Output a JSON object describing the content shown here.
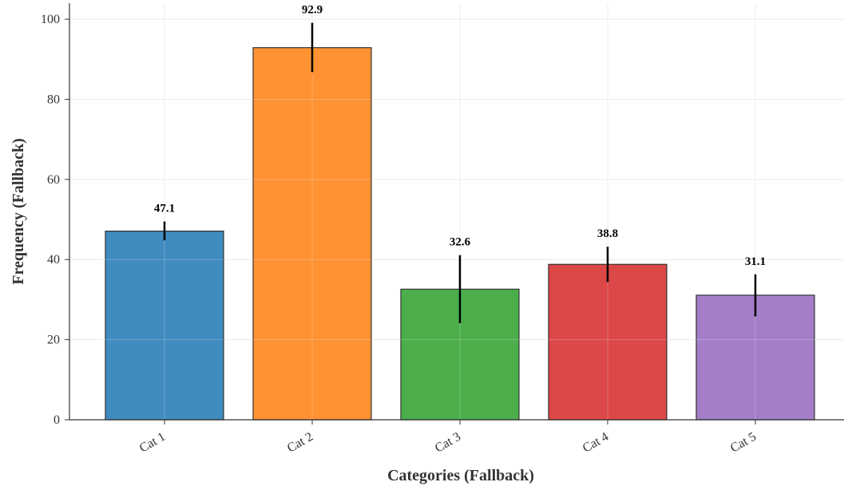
{
  "chart_data": {
    "type": "bar",
    "title": "",
    "xlabel": "Categories (Fallback)",
    "ylabel": "Frequency (Fallback)",
    "categories": [
      "Cat 1",
      "Cat 2",
      "Cat 3",
      "Cat 4",
      "Cat 5"
    ],
    "values": [
      47.1,
      92.9,
      32.6,
      38.8,
      31.1
    ],
    "value_labels": [
      "47.1",
      "92.9",
      "32.6",
      "38.8",
      "31.1"
    ],
    "error_low": [
      44.8,
      86.8,
      24.1,
      34.4,
      25.8
    ],
    "error_high": [
      49.5,
      99.1,
      41.1,
      43.2,
      36.3
    ],
    "colors": [
      "#1f77b4",
      "#ff7f0e",
      "#2ca02c",
      "#d62728",
      "#9467bd"
    ],
    "ylim": [
      0,
      104
    ],
    "yticks": [
      0,
      20,
      40,
      60,
      80,
      100
    ],
    "grid": true,
    "legend": "none"
  }
}
